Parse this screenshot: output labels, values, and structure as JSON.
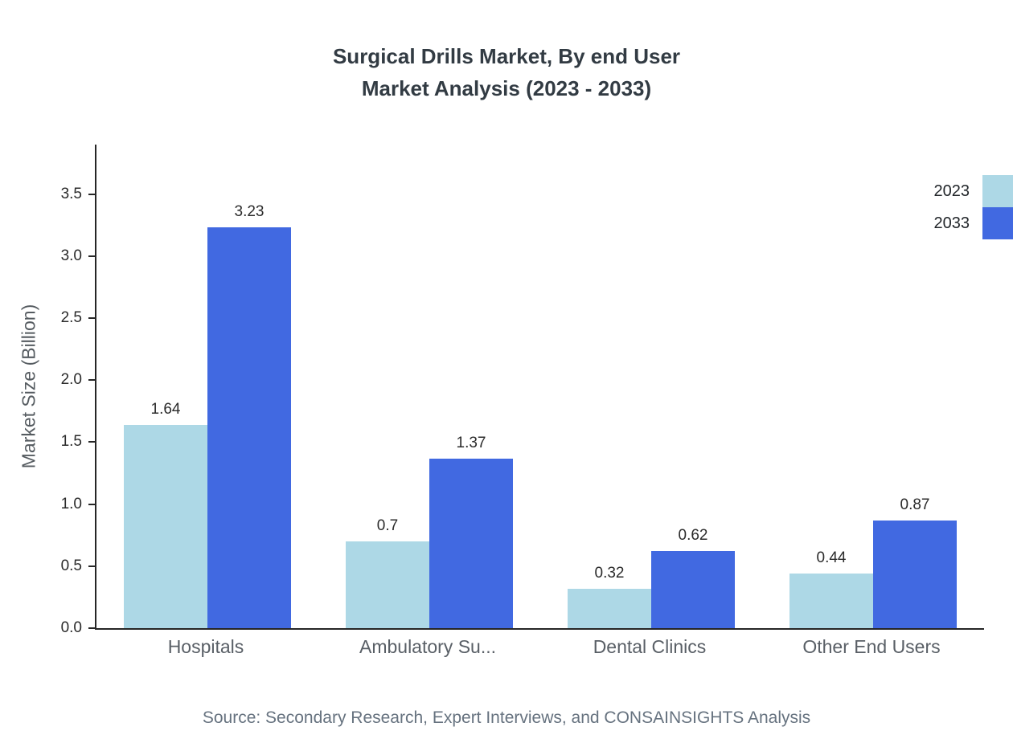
{
  "chart_data": {
    "type": "bar",
    "title": "Surgical Drills Market, By end User Market Analysis (2023 - 2033)",
    "title_lines": [
      "Surgical Drills Market, By end User",
      "Market Analysis (2023 - 2033)"
    ],
    "categories": [
      "Hospitals",
      "Ambulatory Su...",
      "Dental Clinics",
      "Other End Users"
    ],
    "series": [
      {
        "name": "2023",
        "color": "#ADD8E6",
        "values": [
          1.64,
          0.7,
          0.32,
          0.44
        ]
      },
      {
        "name": "2033",
        "color": "#4169E1",
        "values": [
          3.23,
          1.37,
          0.62,
          0.87
        ]
      }
    ],
    "xlabel": "",
    "ylabel": "Market Size (Billion)",
    "ylim": [
      0,
      3.9
    ],
    "yticks": [
      0.0,
      0.5,
      1.0,
      1.5,
      2.0,
      2.5,
      3.0,
      3.5
    ],
    "grid": false,
    "legend_position": "top-right",
    "source": "Source: Secondary Research, Expert Interviews, and CONSAINSIGHTS Analysis"
  }
}
